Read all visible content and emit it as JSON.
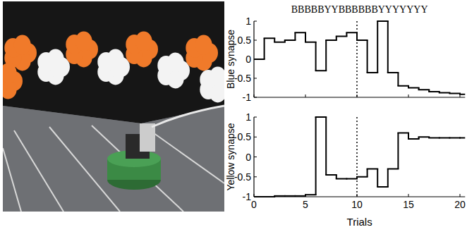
{
  "chart_data": [
    {
      "type": "line",
      "title": "BBBBBYYBBBBBBYYYYYYY",
      "y_label": "Blue synapse",
      "x": [
        0,
        1,
        2,
        3,
        4,
        5,
        6,
        7,
        8,
        9,
        10,
        11,
        12,
        13,
        14,
        15,
        16,
        17,
        18,
        19,
        20
      ],
      "series": [
        {
          "color": "#000000",
          "line_style": "step",
          "values": [
            0,
            0.55,
            0.45,
            0.5,
            0.7,
            0.45,
            -0.3,
            0.5,
            0.6,
            0.7,
            0.5,
            -0.35,
            1,
            -0.35,
            -0.7,
            -0.75,
            -0.8,
            -0.85,
            -0.88,
            -0.9,
            -0.92
          ]
        }
      ],
      "xlim": [
        0,
        20.5
      ],
      "ylim": [
        -1,
        1
      ],
      "xticks": [
        0,
        5,
        10,
        15,
        20
      ],
      "yticks": [
        -1,
        -0.5,
        0,
        0.5,
        1
      ],
      "tick_labels": "y",
      "vlines": [
        10
      ]
    },
    {
      "type": "line",
      "y_label": "Yellow synapse",
      "x_label": "Trials",
      "x": [
        0,
        1,
        2,
        3,
        4,
        5,
        6,
        7,
        8,
        9,
        10,
        11,
        12,
        13,
        14,
        15,
        16,
        17,
        18,
        19,
        20
      ],
      "series": [
        {
          "color": "#000000",
          "line_style": "step",
          "values": [
            -1,
            -1,
            -0.98,
            -0.98,
            -0.98,
            -0.95,
            1,
            -0.45,
            -0.55,
            -0.55,
            -0.5,
            -0.3,
            -0.75,
            -0.3,
            0.6,
            0.45,
            0.5,
            0.48,
            0.48,
            0.48,
            0.48
          ]
        }
      ],
      "xlim": [
        0,
        20.5
      ],
      "ylim": [
        -1,
        1
      ],
      "xticks": [
        0,
        5,
        10,
        15,
        20
      ],
      "yticks": [
        -1,
        -0.5,
        0,
        0.5,
        1
      ],
      "vlines": [
        10
      ]
    }
  ]
}
